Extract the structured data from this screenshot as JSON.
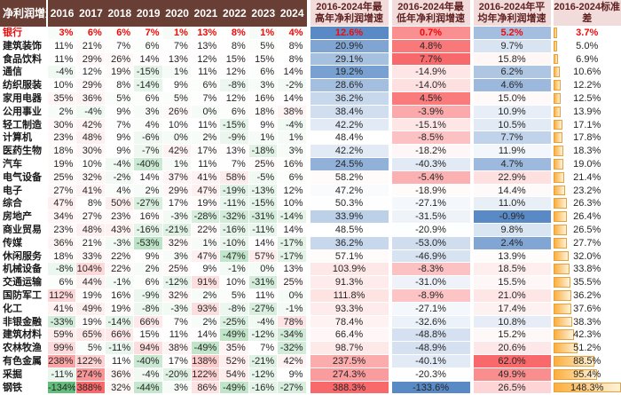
{
  "style": {
    "header_bg": "#693F35",
    "header_text": "#FFFFFF",
    "summary_header_bg": "#F2DCDB",
    "summary_header_text": "#5F2120",
    "heat_high_red": "#F8696B",
    "heat_low_green": "#63BE7B",
    "heat_low_blue": "#5A8AC6",
    "bar_fill_left": "#FBAE3D",
    "bar_fill_right": "#FEF3DB",
    "bar_border": "#E9A23B",
    "highlight_text": "#F00A0A"
  },
  "chart_data": {
    "type": "heatmap",
    "title": "净利润增速",
    "corner_label": "净利润增速",
    "years": [
      "2016",
      "2017",
      "2018",
      "2019",
      "2020",
      "2021",
      "2022",
      "2023",
      "2024"
    ],
    "summary_headers": [
      {
        "line1": "2016-2024年最",
        "line2": "高年净利润增速"
      },
      {
        "line1": "2016-2024年最",
        "line2": "低年净利润增速"
      },
      {
        "line1": "2016-2024年平",
        "line2": "均年净利润增速"
      },
      {
        "line1": "2016-2024标准",
        "line2": "差"
      }
    ],
    "unit": "%",
    "rows": [
      {
        "industry": "银行",
        "highlight": true,
        "yearly_pct": [
          3,
          6,
          6,
          7,
          1,
          13,
          8,
          1,
          4
        ],
        "max_pct": 12.6,
        "min_pct": 0.7,
        "avg_pct": 5.2,
        "std_pct": 3.7
      },
      {
        "industry": "建筑装饰",
        "highlight": false,
        "yearly_pct": [
          11,
          21,
          7,
          6,
          7,
          13,
          8,
          5,
          8
        ],
        "max_pct": 20.9,
        "min_pct": 4.8,
        "avg_pct": 9.7,
        "std_pct": 5.0
      },
      {
        "industry": "食品饮料",
        "highlight": false,
        "yearly_pct": [
          11,
          29,
          26,
          14,
          13,
          12,
          15,
          15,
          8
        ],
        "max_pct": 29.1,
        "min_pct": 7.7,
        "avg_pct": 15.8,
        "std_pct": 6.9
      },
      {
        "industry": "通信",
        "highlight": false,
        "yearly_pct": [
          -4,
          12,
          19,
          -15,
          1,
          11,
          12,
          6,
          14
        ],
        "max_pct": 19.2,
        "min_pct": -14.9,
        "avg_pct": 6.2,
        "std_pct": 10.6
      },
      {
        "industry": "纺织服装",
        "highlight": false,
        "yearly_pct": [
          10,
          29,
          8,
          -14,
          9,
          6,
          -8,
          3,
          -2
        ],
        "max_pct": 28.6,
        "min_pct": -14.0,
        "avg_pct": 4.6,
        "std_pct": 12.2
      },
      {
        "industry": "家用电器",
        "highlight": false,
        "yearly_pct": [
          35,
          36,
          5,
          6,
          5,
          7,
          12,
          16,
          14
        ],
        "max_pct": 36.2,
        "min_pct": 4.5,
        "avg_pct": 15.0,
        "std_pct": 12.5
      },
      {
        "industry": "公用事业",
        "highlight": false,
        "yearly_pct": [
          2,
          -4,
          9,
          3,
          26,
          0,
          6,
          18,
          38
        ],
        "max_pct": 38.4,
        "min_pct": -3.9,
        "avg_pct": 10.9,
        "std_pct": 13.9
      },
      {
        "industry": "轻工制造",
        "highlight": false,
        "yearly_pct": [
          30,
          42,
          7,
          4,
          10,
          11,
          -15,
          9,
          -4
        ],
        "max_pct": 42.2,
        "min_pct": -15.1,
        "avg_pct": 10.5,
        "std_pct": 17.1
      },
      {
        "industry": "计算机",
        "highlight": false,
        "yearly_pct": [
          23,
          48,
          9,
          -6,
          0,
          2,
          -9,
          1,
          1
        ],
        "max_pct": 48.4,
        "min_pct": -8.5,
        "avg_pct": 7.7,
        "std_pct": 17.8
      },
      {
        "industry": "医药生物",
        "highlight": false,
        "yearly_pct": [
          18,
          30,
          9,
          -7,
          42,
          17,
          13,
          -18,
          3
        ],
        "max_pct": 42.2,
        "min_pct": -18.2,
        "avg_pct": 11.9,
        "std_pct": 18.3
      },
      {
        "industry": "汽车",
        "highlight": false,
        "yearly_pct": [
          19,
          10,
          -4,
          -40,
          1,
          11,
          7,
          25,
          16
        ],
        "max_pct": 24.5,
        "min_pct": -40.3,
        "avg_pct": 4.7,
        "std_pct": 19.0
      },
      {
        "industry": "电气设备",
        "highlight": false,
        "yearly_pct": [
          25,
          32,
          -2,
          14,
          37,
          41,
          58,
          -5,
          6
        ],
        "max_pct": 58.2,
        "min_pct": -5.4,
        "avg_pct": 22.9,
        "std_pct": 21.4
      },
      {
        "industry": "电子",
        "highlight": false,
        "yearly_pct": [
          27,
          41,
          4,
          2,
          29,
          47,
          -19,
          -13,
          12
        ],
        "max_pct": 47.2,
        "min_pct": -18.9,
        "avg_pct": 14.4,
        "std_pct": 23.2
      },
      {
        "industry": "综合",
        "highlight": false,
        "yearly_pct": [
          47,
          8,
          50,
          -27,
          17,
          19,
          -11,
          -15,
          10
        ],
        "max_pct": 50.3,
        "min_pct": -27.1,
        "avg_pct": 11.0,
        "std_pct": 26.3
      },
      {
        "industry": "房地产",
        "highlight": false,
        "yearly_pct": [
          34,
          27,
          23,
          16,
          -3,
          -28,
          -32,
          -31,
          -14
        ],
        "max_pct": 33.9,
        "min_pct": -31.5,
        "avg_pct": -0.9,
        "std_pct": 26.4
      },
      {
        "industry": "商业贸易",
        "highlight": false,
        "yearly_pct": [
          23,
          48,
          43,
          -16,
          -21,
          22,
          -16,
          -11,
          14
        ],
        "max_pct": 48.5,
        "min_pct": -20.9,
        "avg_pct": 9.8,
        "std_pct": 26.5
      },
      {
        "industry": "传媒",
        "highlight": false,
        "yearly_pct": [
          36,
          21,
          -3,
          -53,
          32,
          1,
          -10,
          14,
          -17
        ],
        "max_pct": 36.2,
        "min_pct": -53.0,
        "avg_pct": 2.4,
        "std_pct": 27.7
      },
      {
        "industry": "休闲服务",
        "highlight": false,
        "yearly_pct": [
          18,
          33,
          22,
          9,
          3,
          47,
          -47,
          57,
          -17
        ],
        "max_pct": 57.1,
        "min_pct": -46.9,
        "avg_pct": 13.9,
        "std_pct": 32.0
      },
      {
        "industry": "机械设备",
        "highlight": false,
        "yearly_pct": [
          -8,
          104,
          22,
          2,
          25,
          9,
          -1,
          0,
          13
        ],
        "max_pct": 103.9,
        "min_pct": -8.3,
        "avg_pct": 18.5,
        "std_pct": 33.8
      },
      {
        "industry": "交通运输",
        "highlight": false,
        "yearly_pct": [
          6,
          44,
          -1,
          6,
          -12,
          91,
          10,
          -31,
          25
        ],
        "max_pct": 91.3,
        "min_pct": -31.0,
        "avg_pct": 15.5,
        "std_pct": 35.5
      },
      {
        "industry": "国防军工",
        "highlight": false,
        "yearly_pct": [
          112,
          19,
          16,
          -9,
          32,
          2,
          5,
          11,
          0
        ],
        "max_pct": 111.8,
        "min_pct": -8.9,
        "avg_pct": 21.0,
        "std_pct": 36.2
      },
      {
        "industry": "化工",
        "highlight": false,
        "yearly_pct": [
          41,
          49,
          19,
          -8,
          -3,
          93,
          -8,
          -27,
          -1
        ],
        "max_pct": 93.3,
        "min_pct": -27.1,
        "avg_pct": 17.4,
        "std_pct": 37.6
      },
      {
        "industry": "非银金融",
        "highlight": false,
        "yearly_pct": [
          -33,
          19,
          -14,
          66,
          7,
          2,
          -25,
          -4,
          78
        ],
        "max_pct": 78.4,
        "min_pct": -32.6,
        "avg_pct": 10.8,
        "std_pct": 38.3
      },
      {
        "industry": "建筑材料",
        "highlight": false,
        "yearly_pct": [
          59,
          65,
          66,
          15,
          11,
          14,
          -49,
          -12,
          -34
        ],
        "max_pct": 66.4,
        "min_pct": -48.8,
        "avg_pct": 15.2,
        "std_pct": 42.3
      },
      {
        "industry": "农林牧渔",
        "highlight": false,
        "yearly_pct": [
          99,
          5,
          -11,
          94,
          38,
          -49,
          35,
          7,
          -32
        ],
        "max_pct": 98.7,
        "min_pct": -48.9,
        "avg_pct": 20.6,
        "std_pct": 51.2
      },
      {
        "industry": "有色金属",
        "highlight": false,
        "yearly_pct": [
          238,
          122,
          11,
          -40,
          17,
          138,
          52,
          -21,
          42
        ],
        "max_pct": 237.5,
        "min_pct": -40.1,
        "avg_pct": 62.0,
        "std_pct": 88.5
      },
      {
        "industry": "采掘",
        "highlight": false,
        "yearly_pct": [
          -11,
          274,
          36,
          -4,
          -20,
          122,
          54,
          -12,
          9
        ],
        "max_pct": 274.3,
        "min_pct": -20.3,
        "avg_pct": 49.9,
        "std_pct": 95.4
      },
      {
        "industry": "钢铁",
        "highlight": false,
        "yearly_pct": [
          -134,
          388,
          32,
          -44,
          3,
          86,
          -49,
          -16,
          -27
        ],
        "max_pct": 388.3,
        "min_pct": -133.6,
        "avg_pct": 26.5,
        "std_pct": 148.3
      }
    ]
  }
}
